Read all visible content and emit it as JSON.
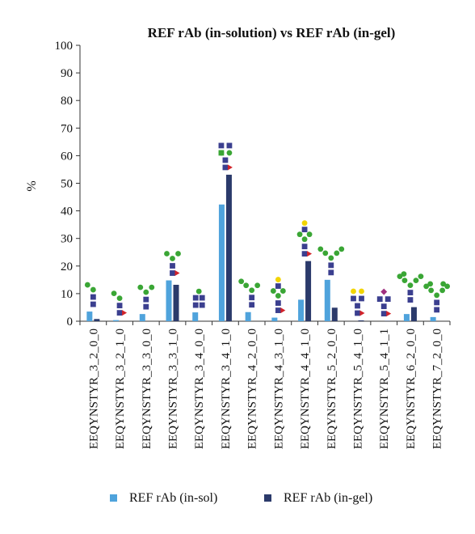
{
  "chart_data": {
    "type": "bar",
    "title": "REF rAb (in-solution) vs REF rAb (in-gel)",
    "xlabel": "",
    "ylabel": "%",
    "ylim": [
      0,
      100
    ],
    "yticks": [
      0,
      10,
      20,
      30,
      40,
      50,
      60,
      70,
      80,
      90,
      100
    ],
    "grid": false,
    "legend_position": "bottom",
    "categories": [
      "EEQYNSTYR_3_2_0_0",
      "EEQYNSTYR_3_2_1_0",
      "EEQYNSTYR_3_3_0_0",
      "EEQYNSTYR_3_3_1_0",
      "EEQYNSTYR_3_4_0_0",
      "EEQYNSTYR_3_4_1_0",
      "EEQYNSTYR_4_2_0_0",
      "EEQYNSTYR_4_3_1_0",
      "EEQYNSTYR_4_4_1_0",
      "EEQYNSTYR_5_2_0_0",
      "EEQYNSTYR_5_4_1_0",
      "EEQYNSTYR_5_4_1_1",
      "EEQYNSTYR_6_2_0_0",
      "EEQYNSTYR_7_2_0_0"
    ],
    "series": [
      {
        "name": "REF rAb (in-sol)",
        "color": "#4fa3dc",
        "values": [
          3.5,
          0.4,
          2.6,
          14.8,
          3.2,
          42.3,
          3.3,
          1.3,
          7.8,
          15.0,
          0.0,
          0.0,
          2.6,
          1.5
        ]
      },
      {
        "name": "REF rAb (in-gel)",
        "color": "#2b3a6b",
        "values": [
          0.8,
          0.0,
          0.0,
          13.2,
          0.0,
          53.1,
          0.0,
          0.0,
          21.8,
          4.9,
          0.3,
          0.1,
          5.1,
          0.0
        ]
      }
    ],
    "glycan_icons": [
      "man2-core",
      "man2-core-fuc",
      "man3-core",
      "man3-core-fuc",
      "galnac-core",
      "bisect-core-fuc",
      "man4-core",
      "man4-gal-fuc",
      "man4-gal-fuc",
      "man5-core",
      "gal2-fuc",
      "gal2-sia-fuc",
      "man6-core",
      "man7-core"
    ],
    "glycan_colors": {
      "mannose": "#3aa635",
      "glcnac": "#3b3f8f",
      "fucose": "#d2232a",
      "galactose": "#f2d400",
      "sialic": "#a0307f"
    }
  }
}
